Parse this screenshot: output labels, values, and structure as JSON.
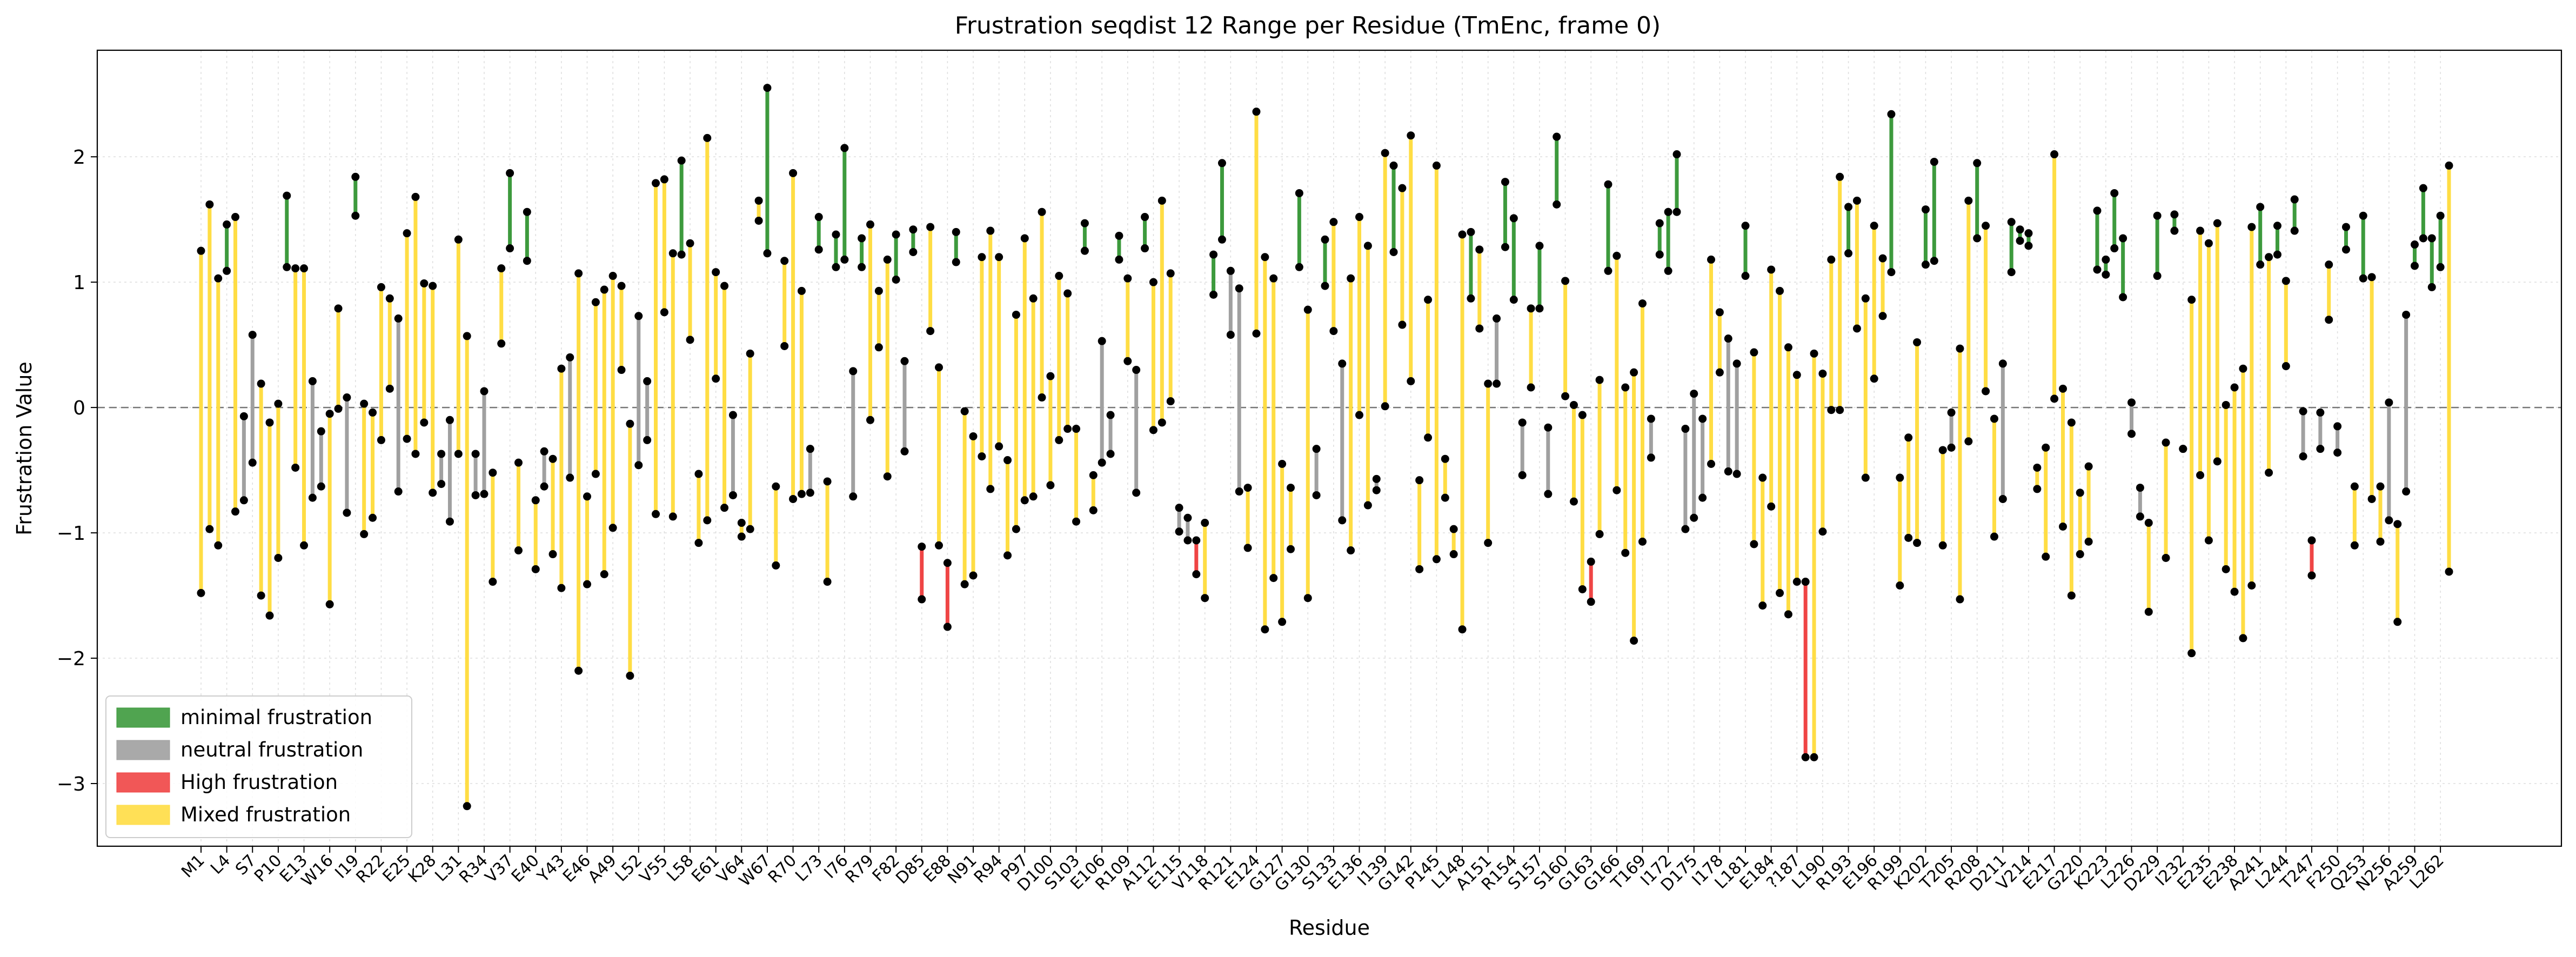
{
  "chart_data": {
    "type": "range",
    "title": "Frustration seqdist 12 Range per Residue (TmEnc, frame 0)",
    "xlabel": "Residue",
    "ylabel": "Frustration Value",
    "ylim": [
      -3.5,
      2.85
    ],
    "yticks": [
      -3,
      -2,
      -1,
      0,
      1,
      2
    ],
    "zero_line": true,
    "grid": true,
    "legend_position": "lower-left",
    "x_tick_labels": [
      "M1",
      "L4",
      "S7",
      "P10",
      "E13",
      "W16",
      "I19",
      "R22",
      "E25",
      "K28",
      "L31",
      "R34",
      "V37",
      "E40",
      "Y43",
      "E46",
      "A49",
      "L52",
      "V55",
      "L58",
      "E61",
      "V64",
      "W67",
      "R70",
      "L73",
      "I76",
      "R79",
      "F82",
      "D85",
      "E88",
      "N91",
      "R94",
      "P97",
      "D100",
      "S103",
      "E106",
      "R109",
      "A112",
      "E115",
      "V118",
      "R121",
      "E124",
      "G127",
      "G130",
      "S133",
      "E136",
      "I139",
      "G142",
      "P145",
      "L148",
      "A151",
      "R154",
      "S157",
      "S160",
      "G163",
      "G166",
      "T169",
      "I172",
      "D175",
      "I178",
      "L181",
      "E184",
      "?187",
      "L190",
      "R193",
      "E196",
      "R199",
      "K202",
      "T205",
      "R208",
      "D211",
      "V214",
      "E217",
      "G220",
      "K223",
      "L226",
      "D229",
      "I232",
      "E235",
      "E238",
      "A241",
      "L244",
      "T247",
      "F250",
      "Q253",
      "N256",
      "A259",
      "L262"
    ],
    "categories_legend": [
      {
        "name": "minimal frustration",
        "color": "#3d9a3d"
      },
      {
        "name": "neutral frustration",
        "color": "#a0a0a0"
      },
      {
        "name": "High frustration",
        "color": "#ef4545"
      },
      {
        "name": "Mixed frustration",
        "color": "#ffdd44"
      }
    ],
    "residue_ranges": [
      [
        -1.48,
        1.25,
        "mixed"
      ],
      [
        -0.97,
        1.62,
        "mixed"
      ],
      [
        -1.1,
        1.03,
        "mixed"
      ],
      [
        1.09,
        1.46,
        "minimal"
      ],
      [
        -0.83,
        1.52,
        "mixed"
      ],
      [
        -0.74,
        -0.07,
        "neutral"
      ],
      [
        -0.44,
        0.58,
        "neutral"
      ],
      [
        -1.5,
        0.19,
        "mixed"
      ],
      [
        -1.66,
        -0.12,
        "mixed"
      ],
      [
        -1.2,
        0.03,
        "mixed"
      ],
      [
        1.12,
        1.69,
        "minimal"
      ],
      [
        -0.48,
        1.11,
        "mixed"
      ],
      [
        -1.1,
        1.11,
        "mixed"
      ],
      [
        -0.72,
        0.21,
        "neutral"
      ],
      [
        -0.63,
        -0.19,
        "neutral"
      ],
      [
        -1.57,
        -0.05,
        "mixed"
      ],
      [
        -0.01,
        0.79,
        "mixed"
      ],
      [
        -0.84,
        0.08,
        "neutral"
      ],
      [
        1.53,
        1.84,
        "minimal"
      ],
      [
        -1.01,
        0.03,
        "mixed"
      ],
      [
        -0.88,
        -0.04,
        "mixed"
      ],
      [
        -0.26,
        0.96,
        "mixed"
      ],
      [
        0.15,
        0.87,
        "mixed"
      ],
      [
        -0.67,
        0.71,
        "neutral"
      ],
      [
        -0.25,
        1.39,
        "mixed"
      ],
      [
        -0.37,
        1.68,
        "mixed"
      ],
      [
        -0.12,
        0.99,
        "mixed"
      ],
      [
        -0.68,
        0.97,
        "mixed"
      ],
      [
        -0.61,
        -0.37,
        "neutral"
      ],
      [
        -0.91,
        -0.1,
        "neutral"
      ],
      [
        -0.37,
        1.34,
        "mixed"
      ],
      [
        -3.18,
        0.57,
        "mixed"
      ],
      [
        -0.7,
        -0.37,
        "neutral"
      ],
      [
        -0.69,
        0.13,
        "neutral"
      ],
      [
        -1.39,
        -0.52,
        "mixed"
      ],
      [
        0.51,
        1.11,
        "mixed"
      ],
      [
        1.27,
        1.87,
        "minimal"
      ],
      [
        -1.14,
        -0.44,
        "mixed"
      ],
      [
        1.17,
        1.56,
        "minimal"
      ],
      [
        -1.29,
        -0.74,
        "mixed"
      ],
      [
        -0.63,
        -0.35,
        "neutral"
      ],
      [
        -1.17,
        -0.41,
        "mixed"
      ],
      [
        -1.44,
        0.31,
        "mixed"
      ],
      [
        -0.56,
        0.4,
        "neutral"
      ],
      [
        -2.1,
        1.07,
        "mixed"
      ],
      [
        -1.41,
        -0.71,
        "mixed"
      ],
      [
        -0.53,
        0.84,
        "mixed"
      ],
      [
        -1.33,
        0.94,
        "mixed"
      ],
      [
        -0.96,
        1.05,
        "mixed"
      ],
      [
        0.3,
        0.97,
        "mixed"
      ],
      [
        -2.14,
        -0.13,
        "mixed"
      ],
      [
        -0.46,
        0.73,
        "neutral"
      ],
      [
        -0.26,
        0.21,
        "neutral"
      ],
      [
        -0.85,
        1.79,
        "mixed"
      ],
      [
        0.76,
        1.82,
        "mixed"
      ],
      [
        -0.87,
        1.23,
        "mixed"
      ],
      [
        1.22,
        1.97,
        "minimal"
      ],
      [
        0.54,
        1.31,
        "mixed"
      ],
      [
        -1.08,
        -0.53,
        "mixed"
      ],
      [
        -0.9,
        2.15,
        "mixed"
      ],
      [
        0.23,
        1.08,
        "mixed"
      ],
      [
        -0.8,
        0.97,
        "mixed"
      ],
      [
        -0.7,
        -0.06,
        "neutral"
      ],
      [
        -1.03,
        -0.92,
        "mixed"
      ],
      [
        -0.97,
        0.43,
        "mixed"
      ],
      [
        1.49,
        1.65,
        "mixed"
      ],
      [
        1.23,
        2.55,
        "minimal"
      ],
      [
        -1.26,
        -0.63,
        "mixed"
      ],
      [
        0.49,
        1.17,
        "mixed"
      ],
      [
        -0.73,
        1.87,
        "mixed"
      ],
      [
        -0.69,
        0.93,
        "mixed"
      ],
      [
        -0.68,
        -0.33,
        "neutral"
      ],
      [
        1.26,
        1.52,
        "minimal"
      ],
      [
        -1.39,
        -0.59,
        "mixed"
      ],
      [
        1.12,
        1.38,
        "minimal"
      ],
      [
        1.18,
        2.07,
        "minimal"
      ],
      [
        -0.71,
        0.29,
        "neutral"
      ],
      [
        1.12,
        1.35,
        "minimal"
      ],
      [
        -0.1,
        1.46,
        "mixed"
      ],
      [
        0.48,
        0.93,
        "mixed"
      ],
      [
        -0.55,
        1.18,
        "mixed"
      ],
      [
        1.02,
        1.38,
        "minimal"
      ],
      [
        -0.35,
        0.37,
        "neutral"
      ],
      [
        1.24,
        1.42,
        "minimal"
      ],
      [
        -1.53,
        -1.11,
        "high"
      ],
      [
        0.61,
        1.44,
        "mixed"
      ],
      [
        -1.1,
        0.32,
        "mixed"
      ],
      [
        -1.75,
        -1.24,
        "high"
      ],
      [
        1.16,
        1.4,
        "minimal"
      ],
      [
        -1.41,
        -0.03,
        "mixed"
      ],
      [
        -1.34,
        -0.23,
        "mixed"
      ],
      [
        -0.39,
        1.2,
        "mixed"
      ],
      [
        -0.65,
        1.41,
        "mixed"
      ],
      [
        -0.31,
        1.2,
        "mixed"
      ],
      [
        -1.18,
        -0.42,
        "mixed"
      ],
      [
        -0.97,
        0.74,
        "mixed"
      ],
      [
        -0.74,
        1.35,
        "mixed"
      ],
      [
        -0.71,
        0.87,
        "mixed"
      ],
      [
        0.08,
        1.56,
        "mixed"
      ],
      [
        -0.62,
        0.25,
        "mixed"
      ],
      [
        -0.26,
        1.05,
        "mixed"
      ],
      [
        -0.17,
        0.91,
        "mixed"
      ],
      [
        -0.91,
        -0.17,
        "mixed"
      ],
      [
        1.25,
        1.47,
        "minimal"
      ],
      [
        -0.54,
        -0.82,
        "mixed"
      ],
      [
        -0.44,
        0.53,
        "neutral"
      ],
      [
        -0.37,
        -0.06,
        "neutral"
      ],
      [
        1.18,
        1.37,
        "minimal"
      ],
      [
        0.37,
        1.03,
        "mixed"
      ],
      [
        -0.68,
        0.3,
        "neutral"
      ],
      [
        1.27,
        1.52,
        "minimal"
      ],
      [
        -0.18,
        1.0,
        "mixed"
      ],
      [
        -0.12,
        1.65,
        "mixed"
      ],
      [
        0.05,
        1.07,
        "mixed"
      ],
      [
        -0.99,
        -0.8,
        "neutral"
      ],
      [
        -1.06,
        -0.88,
        "neutral"
      ],
      [
        -1.33,
        -1.06,
        "high"
      ],
      [
        -1.52,
        -0.92,
        "mixed"
      ],
      [
        0.9,
        1.22,
        "minimal"
      ],
      [
        1.34,
        1.95,
        "minimal"
      ],
      [
        0.58,
        1.09,
        "neutral"
      ],
      [
        -0.67,
        0.95,
        "neutral"
      ],
      [
        -1.12,
        -0.64,
        "mixed"
      ],
      [
        0.59,
        2.36,
        "mixed"
      ],
      [
        -1.77,
        1.2,
        "mixed"
      ],
      [
        -1.36,
        1.03,
        "mixed"
      ],
      [
        -1.71,
        -0.45,
        "mixed"
      ],
      [
        -1.13,
        -0.64,
        "mixed"
      ],
      [
        1.12,
        1.71,
        "minimal"
      ],
      [
        -1.52,
        0.78,
        "mixed"
      ],
      [
        -0.7,
        -0.33,
        "neutral"
      ],
      [
        0.97,
        1.34,
        "minimal"
      ],
      [
        0.61,
        1.48,
        "mixed"
      ],
      [
        -0.9,
        0.35,
        "neutral"
      ],
      [
        -1.14,
        1.03,
        "mixed"
      ],
      [
        -0.06,
        1.52,
        "mixed"
      ],
      [
        -0.78,
        1.29,
        "mixed"
      ],
      [
        -0.66,
        -0.57,
        "neutral"
      ],
      [
        0.01,
        2.03,
        "mixed"
      ],
      [
        1.24,
        1.93,
        "minimal"
      ],
      [
        0.66,
        1.75,
        "mixed"
      ],
      [
        0.21,
        2.17,
        "mixed"
      ],
      [
        -1.29,
        -0.58,
        "mixed"
      ],
      [
        -0.24,
        0.86,
        "mixed"
      ],
      [
        -1.21,
        1.93,
        "mixed"
      ],
      [
        -0.41,
        -0.72,
        "mixed"
      ],
      [
        -1.17,
        -0.97,
        "mixed"
      ],
      [
        -1.77,
        1.38,
        "mixed"
      ],
      [
        0.87,
        1.4,
        "minimal"
      ],
      [
        0.63,
        1.26,
        "mixed"
      ],
      [
        -1.08,
        0.19,
        "mixed"
      ],
      [
        0.19,
        0.71,
        "neutral"
      ],
      [
        1.28,
        1.8,
        "minimal"
      ],
      [
        0.86,
        1.51,
        "minimal"
      ],
      [
        -0.54,
        -0.12,
        "neutral"
      ],
      [
        0.16,
        0.79,
        "mixed"
      ],
      [
        0.79,
        1.29,
        "minimal"
      ],
      [
        -0.69,
        -0.16,
        "neutral"
      ],
      [
        1.62,
        2.16,
        "minimal"
      ],
      [
        0.09,
        1.01,
        "mixed"
      ],
      [
        -0.75,
        0.02,
        "mixed"
      ],
      [
        -1.45,
        -0.06,
        "mixed"
      ],
      [
        -1.55,
        -1.23,
        "high"
      ],
      [
        -1.01,
        0.22,
        "mixed"
      ],
      [
        1.09,
        1.78,
        "minimal"
      ],
      [
        -0.66,
        1.21,
        "mixed"
      ],
      [
        -1.16,
        0.16,
        "mixed"
      ],
      [
        -1.86,
        0.28,
        "mixed"
      ],
      [
        -1.07,
        0.83,
        "mixed"
      ],
      [
        -0.4,
        -0.09,
        "neutral"
      ],
      [
        1.22,
        1.47,
        "minimal"
      ],
      [
        1.09,
        1.56,
        "minimal"
      ],
      [
        1.56,
        2.02,
        "minimal"
      ],
      [
        -0.97,
        -0.17,
        "neutral"
      ],
      [
        -0.88,
        0.11,
        "neutral"
      ],
      [
        -0.72,
        -0.09,
        "neutral"
      ],
      [
        -0.45,
        1.18,
        "mixed"
      ],
      [
        0.28,
        0.76,
        "mixed"
      ],
      [
        -0.51,
        0.55,
        "neutral"
      ],
      [
        -0.53,
        0.35,
        "neutral"
      ],
      [
        1.05,
        1.45,
        "minimal"
      ],
      [
        -1.09,
        0.44,
        "mixed"
      ],
      [
        -1.58,
        -0.56,
        "mixed"
      ],
      [
        -0.79,
        1.1,
        "mixed"
      ],
      [
        -1.48,
        0.93,
        "mixed"
      ],
      [
        -1.65,
        0.48,
        "mixed"
      ],
      [
        -1.39,
        0.26,
        "mixed"
      ],
      [
        -2.79,
        -1.39,
        "high"
      ],
      [
        -2.79,
        0.43,
        "mixed"
      ],
      [
        -0.99,
        0.27,
        "mixed"
      ],
      [
        -0.02,
        1.18,
        "mixed"
      ],
      [
        -0.02,
        1.84,
        "mixed"
      ],
      [
        1.23,
        1.6,
        "minimal"
      ],
      [
        0.63,
        1.65,
        "mixed"
      ],
      [
        -0.56,
        0.87,
        "mixed"
      ],
      [
        0.23,
        1.45,
        "mixed"
      ],
      [
        0.73,
        1.19,
        "mixed"
      ],
      [
        1.08,
        2.34,
        "minimal"
      ],
      [
        -1.42,
        -0.56,
        "mixed"
      ],
      [
        -1.04,
        -0.24,
        "mixed"
      ],
      [
        -1.08,
        0.52,
        "mixed"
      ],
      [
        1.14,
        1.58,
        "minimal"
      ],
      [
        1.17,
        1.96,
        "minimal"
      ],
      [
        -1.1,
        -0.34,
        "mixed"
      ],
      [
        -0.32,
        -0.04,
        "neutral"
      ],
      [
        -1.53,
        0.47,
        "mixed"
      ],
      [
        -0.27,
        1.65,
        "mixed"
      ],
      [
        1.35,
        1.95,
        "minimal"
      ],
      [
        0.13,
        1.45,
        "mixed"
      ],
      [
        -1.03,
        -0.09,
        "mixed"
      ],
      [
        -0.73,
        0.35,
        "neutral"
      ],
      [
        1.08,
        1.48,
        "minimal"
      ],
      [
        1.33,
        1.42,
        "minimal"
      ],
      [
        1.29,
        1.39,
        "minimal"
      ],
      [
        -0.65,
        -0.48,
        "mixed"
      ],
      [
        -1.19,
        -0.32,
        "mixed"
      ],
      [
        0.07,
        2.02,
        "mixed"
      ],
      [
        -0.95,
        0.15,
        "mixed"
      ],
      [
        -1.5,
        -0.12,
        "mixed"
      ],
      [
        -1.17,
        -0.68,
        "mixed"
      ],
      [
        -1.07,
        -0.47,
        "mixed"
      ],
      [
        1.1,
        1.57,
        "minimal"
      ],
      [
        1.06,
        1.18,
        "minimal"
      ],
      [
        1.27,
        1.71,
        "minimal"
      ],
      [
        0.88,
        1.35,
        "minimal"
      ],
      [
        -0.21,
        0.04,
        "neutral"
      ],
      [
        -0.87,
        -0.64,
        "neutral"
      ],
      [
        -1.63,
        -0.92,
        "mixed"
      ],
      [
        1.05,
        1.53,
        "minimal"
      ],
      [
        -1.2,
        -0.28,
        "mixed"
      ],
      [
        1.41,
        1.54,
        "minimal"
      ],
      [
        -0.33,
        -0.33,
        "mixed"
      ],
      [
        -1.96,
        0.86,
        "mixed"
      ],
      [
        -0.54,
        1.41,
        "mixed"
      ],
      [
        -1.06,
        1.31,
        "mixed"
      ],
      [
        -0.43,
        1.47,
        "mixed"
      ],
      [
        -1.29,
        0.02,
        "mixed"
      ],
      [
        -1.47,
        0.16,
        "mixed"
      ],
      [
        -1.84,
        0.31,
        "mixed"
      ],
      [
        -1.42,
        1.44,
        "mixed"
      ],
      [
        1.14,
        1.6,
        "minimal"
      ],
      [
        -0.52,
        1.2,
        "mixed"
      ],
      [
        1.22,
        1.45,
        "minimal"
      ],
      [
        0.33,
        1.01,
        "mixed"
      ],
      [
        1.41,
        1.66,
        "minimal"
      ],
      [
        -0.39,
        -0.03,
        "neutral"
      ],
      [
        -1.34,
        -1.06,
        "high"
      ],
      [
        -0.33,
        -0.04,
        "neutral"
      ],
      [
        0.7,
        1.14,
        "mixed"
      ],
      [
        -0.36,
        -0.15,
        "neutral"
      ],
      [
        1.26,
        1.44,
        "minimal"
      ],
      [
        -1.1,
        -0.63,
        "mixed"
      ],
      [
        1.03,
        1.53,
        "minimal"
      ],
      [
        -0.73,
        1.04,
        "mixed"
      ],
      [
        -1.07,
        -0.63,
        "mixed"
      ],
      [
        -0.9,
        0.04,
        "neutral"
      ],
      [
        -1.71,
        -0.93,
        "mixed"
      ],
      [
        -0.67,
        0.74,
        "neutral"
      ],
      [
        1.13,
        1.3,
        "minimal"
      ],
      [
        1.35,
        1.75,
        "minimal"
      ],
      [
        0.96,
        1.35,
        "minimal"
      ],
      [
        1.12,
        1.53,
        "minimal"
      ],
      [
        -1.31,
        1.93,
        "mixed"
      ]
    ]
  }
}
